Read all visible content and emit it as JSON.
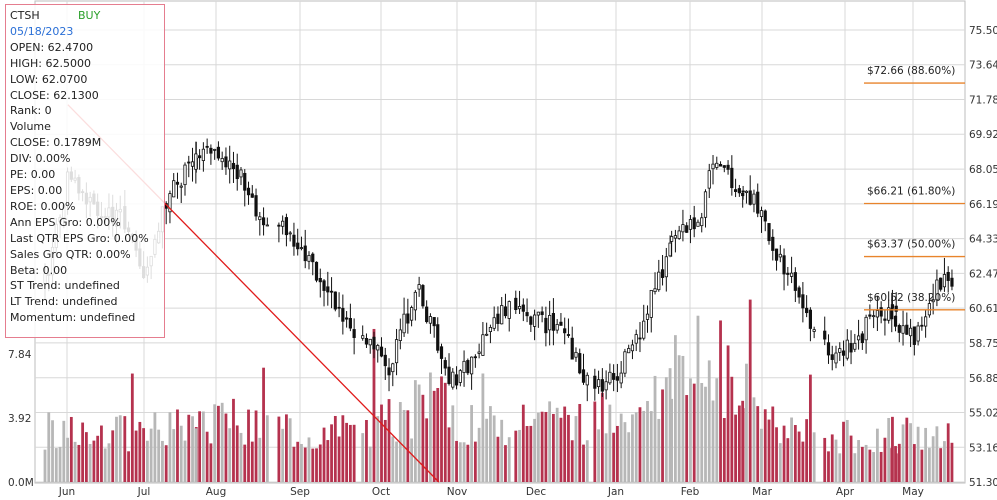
{
  "info_box": {
    "symbol": "CTSH",
    "signal": "BUY",
    "date": "05/18/2023",
    "lines": [
      "OPEN: 62.4700",
      "HIGH: 62.5000",
      "LOW: 62.0700",
      "CLOSE: 62.1300",
      "Rank: 0",
      "Volume",
      "CLOSE: 0.1789M",
      "DIV: 0.00%",
      "PE: 0.00",
      "EPS: 0.00",
      "ROE: 0.00%",
      "Ann EPS Gro: 0.00%",
      "Last QTR EPS Gro: 0.00%",
      "Sales Gro QTR: 0.00%",
      "Beta: 0.00",
      "ST Trend: undefined",
      "LT Trend: undefined",
      "Momentum: undefined"
    ]
  },
  "colors": {
    "up": "#111111",
    "down": "#111111",
    "fib_line": "#e8842c",
    "trend_line": "#e01b1b",
    "vol_up": "#b7b7b7",
    "vol_down": "#b5324e",
    "grid": "#d8d8d8"
  },
  "chart_data": {
    "type": "candlestick",
    "symbol": "CTSH",
    "price_axis": {
      "min": 51.3,
      "max": 75.5,
      "ticks": [
        "75.50",
        "73.64",
        "71.78",
        "69.92",
        "68.05",
        "66.19",
        "64.33",
        "62.47",
        "60.61",
        "58.75",
        "56.88",
        "55.02",
        "53.16",
        "51.30"
      ]
    },
    "volume_axis": {
      "unit": "M",
      "ticks": [
        {
          "value": 7.84,
          "label": "7.84"
        },
        {
          "value": 3.92,
          "label": "3.92"
        },
        {
          "value": 0,
          "label": "0.0M"
        }
      ],
      "max": 11.76
    },
    "x_labels": [
      "Jun",
      "Jul",
      "Aug",
      "Sep",
      "Oct",
      "Nov",
      "Dec",
      "Jan",
      "Feb",
      "Mar",
      "Apr",
      "May"
    ],
    "fib_levels": [
      {
        "price": 72.66,
        "label": "$72.66 (88.60%)"
      },
      {
        "price": 66.21,
        "label": "$66.21 (61.80%)"
      },
      {
        "price": 63.37,
        "label": "$63.37 (50.00%)"
      },
      {
        "price": 60.52,
        "label": "$60.52 (38.20%)"
      }
    ],
    "trend_line": {
      "from": {
        "month_pos": 0.3,
        "price": 71.5
      },
      "to": {
        "month_pos": 5.05,
        "price": 51.3
      }
    },
    "grid": true,
    "anchors": [
      [
        0.0,
        62.0
      ],
      [
        0.3,
        67.5
      ],
      [
        0.6,
        66.0
      ],
      [
        1.0,
        65.5
      ],
      [
        1.3,
        62.5
      ],
      [
        1.6,
        66.5
      ],
      [
        1.9,
        68.5
      ],
      [
        2.2,
        69.0
      ],
      [
        2.5,
        68.5
      ],
      [
        2.8,
        66.0
      ],
      [
        3.2,
        64.5
      ],
      [
        3.6,
        62.0
      ],
      [
        3.9,
        60.0
      ],
      [
        4.2,
        58.5
      ],
      [
        4.4,
        57.5
      ],
      [
        4.6,
        60.0
      ],
      [
        4.8,
        61.5
      ],
      [
        5.0,
        59.0
      ],
      [
        5.2,
        56.5
      ],
      [
        5.5,
        58.0
      ],
      [
        5.8,
        60.0
      ],
      [
        6.0,
        61.0
      ],
      [
        6.3,
        60.0
      ],
      [
        6.6,
        59.5
      ],
      [
        7.0,
        56.5
      ],
      [
        7.3,
        57.0
      ],
      [
        7.6,
        59.5
      ],
      [
        7.9,
        62.5
      ],
      [
        8.1,
        65.0
      ],
      [
        8.4,
        65.0
      ],
      [
        8.6,
        69.0
      ],
      [
        8.9,
        67.0
      ],
      [
        9.2,
        66.5
      ],
      [
        9.5,
        63.5
      ],
      [
        9.8,
        61.0
      ],
      [
        10.1,
        58.0
      ],
      [
        10.4,
        58.5
      ],
      [
        10.7,
        60.5
      ],
      [
        11.0,
        60.0
      ],
      [
        11.3,
        59.0
      ],
      [
        11.6,
        62.0
      ],
      [
        11.8,
        62.1
      ]
    ],
    "volume_anchors": [
      [
        0.0,
        3.1
      ],
      [
        1.0,
        3.0
      ],
      [
        2.0,
        3.3
      ],
      [
        2.5,
        4.0
      ],
      [
        3.0,
        3.1
      ],
      [
        4.0,
        3.0
      ],
      [
        5.0,
        5.0
      ],
      [
        5.5,
        3.3
      ],
      [
        6.0,
        3.5
      ],
      [
        7.0,
        3.8
      ],
      [
        8.0,
        6.5
      ],
      [
        9.0,
        6.0
      ],
      [
        9.5,
        3.0
      ],
      [
        10.0,
        2.8
      ],
      [
        11.0,
        2.9
      ],
      [
        11.8,
        3.1
      ]
    ],
    "candle_count": 240,
    "seed": 7
  }
}
